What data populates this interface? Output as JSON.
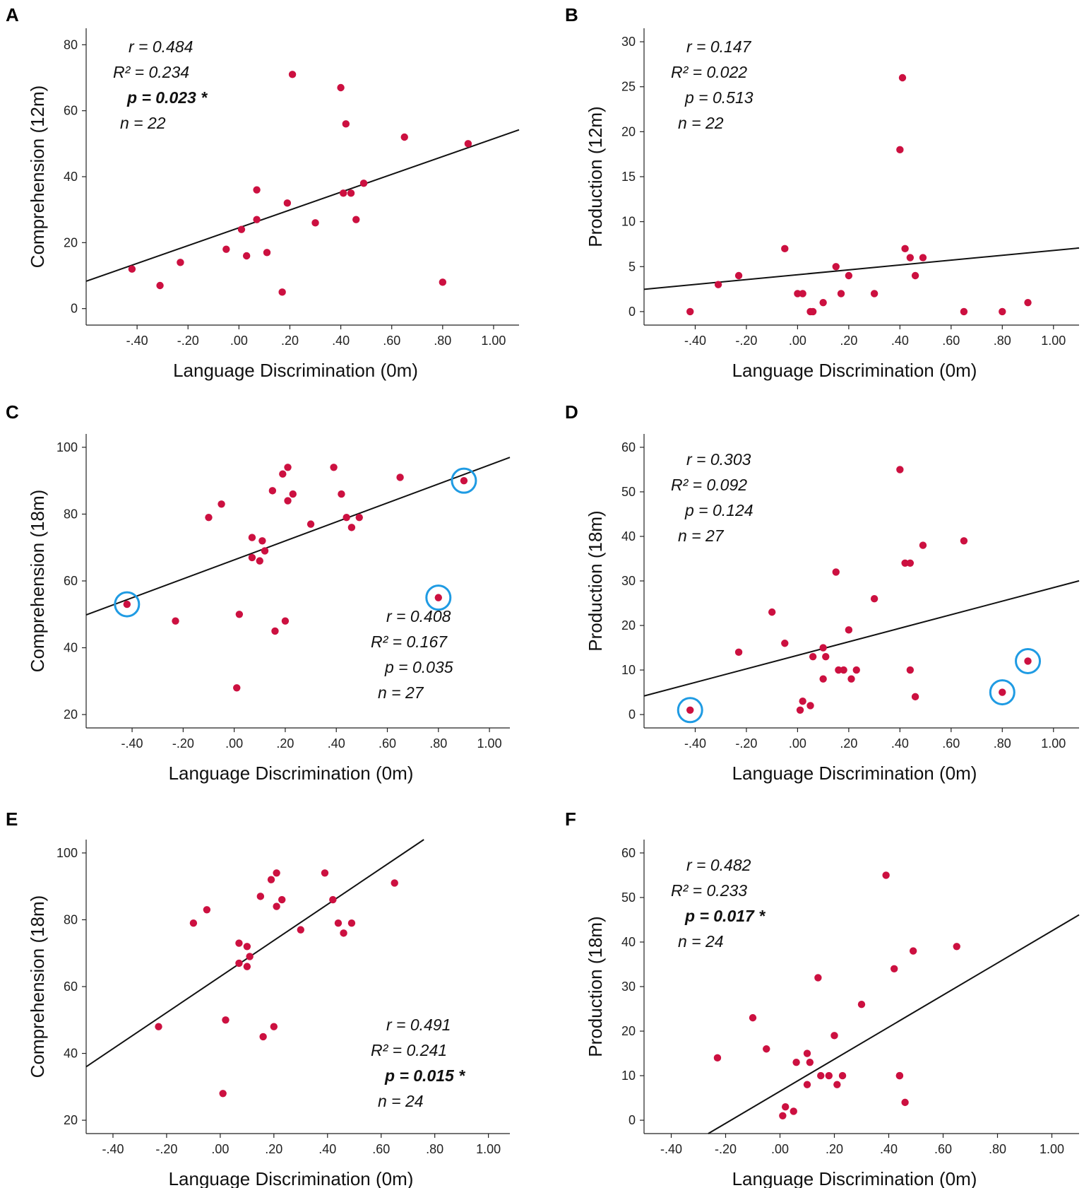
{
  "figure": {
    "colors": {
      "point": "#cc1040",
      "highlight": "#1f9be3",
      "line": "#111111"
    },
    "panels": [
      {
        "letter": "A",
        "xlabel": "Language Discrimination (0m)",
        "ylabel": "Comprehension (12m)",
        "xticks": [
          "-.40",
          "-.20",
          ".00",
          ".20",
          ".40",
          ".60",
          ".80",
          "1.00"
        ],
        "yticks": [
          "0",
          "20",
          "40",
          "60",
          "80"
        ],
        "stats": [
          {
            "text": "r = 0.484",
            "bold": false
          },
          {
            "text": "R² = 0.234",
            "bold": false
          },
          {
            "text": "p = 0.023 *",
            "bold": true
          },
          {
            "text": "n =  22",
            "bold": false
          }
        ]
      },
      {
        "letter": "B",
        "xlabel": "Language Discrimination (0m)",
        "ylabel": "Production (12m)",
        "xticks": [
          "-.40",
          "-.20",
          ".00",
          ".20",
          ".40",
          ".60",
          ".80",
          "1.00"
        ],
        "yticks": [
          "0",
          "5",
          "10",
          "15",
          "20",
          "25",
          "30"
        ],
        "stats": [
          {
            "text": "r = 0.147",
            "bold": false
          },
          {
            "text": "R² = 0.022",
            "bold": false
          },
          {
            "text": "p = 0.513",
            "bold": false
          },
          {
            "text": "n = 22",
            "bold": false
          }
        ]
      },
      {
        "letter": "C",
        "xlabel": "Language Discrimination (0m)",
        "ylabel": "Comprehension (18m)",
        "xticks": [
          "-.40",
          "-.20",
          ".00",
          ".20",
          ".40",
          ".60",
          ".80",
          "1.00"
        ],
        "yticks": [
          "20",
          "40",
          "60",
          "80",
          "100"
        ],
        "stats": [
          {
            "text": "r = 0.408",
            "bold": false
          },
          {
            "text": "R² = 0.167",
            "bold": false
          },
          {
            "text": "p = 0.035",
            "bold": false
          },
          {
            "text": "n = 27",
            "bold": false
          }
        ]
      },
      {
        "letter": "D",
        "xlabel": "Language Discrimination (0m)",
        "ylabel": "Production (18m)",
        "xticks": [
          "-.40",
          "-.20",
          ".00",
          ".20",
          ".40",
          ".60",
          ".80",
          "1.00"
        ],
        "yticks": [
          "0",
          "10",
          "20",
          "30",
          "40",
          "50",
          "60"
        ],
        "stats": [
          {
            "text": "r = 0.303",
            "bold": false
          },
          {
            "text": "R² = 0.092",
            "bold": false
          },
          {
            "text": "p = 0.124",
            "bold": false
          },
          {
            "text": "n = 27",
            "bold": false
          }
        ]
      },
      {
        "letter": "E",
        "xlabel": "Language Discrimination (0m)",
        "ylabel": "Comprehension (18m)",
        "xticks": [
          "-.40",
          "-.20",
          ".00",
          ".20",
          ".40",
          ".60",
          ".80",
          "1.00"
        ],
        "yticks": [
          "20",
          "40",
          "60",
          "80",
          "100"
        ],
        "stats": [
          {
            "text": "r = 0.491",
            "bold": false
          },
          {
            "text": "R² = 0.241",
            "bold": false
          },
          {
            "text": "p = 0.015 *",
            "bold": true
          },
          {
            "text": "n = 24",
            "bold": false
          }
        ]
      },
      {
        "letter": "F",
        "xlabel": "Language Discrimination (0m)",
        "ylabel": "Production (18m)",
        "xticks": [
          "-.40",
          "-.20",
          ".00",
          ".20",
          ".40",
          ".60",
          ".80",
          "1.00"
        ],
        "yticks": [
          "0",
          "10",
          "20",
          "30",
          "40",
          "50",
          "60"
        ],
        "stats": [
          {
            "text": "r = 0.482",
            "bold": false
          },
          {
            "text": "R² = 0.233",
            "bold": false
          },
          {
            "text": "p = 0.017 *",
            "bold": true
          },
          {
            "text": "n = 24",
            "bold": false
          }
        ]
      }
    ]
  },
  "chart_data": [
    {
      "type": "scatter",
      "panel": "A",
      "xlabel": "Language Discrimination (0m)",
      "ylabel": "Comprehension (12m)",
      "xlim": [
        -0.6,
        1.1
      ],
      "ylim": [
        -5,
        85
      ],
      "x": [
        -0.42,
        -0.31,
        -0.23,
        -0.05,
        0.01,
        0.03,
        0.07,
        0.07,
        0.11,
        0.17,
        0.19,
        0.21,
        0.3,
        0.4,
        0.41,
        0.42,
        0.44,
        0.46,
        0.49,
        0.65,
        0.8,
        0.9
      ],
      "y": [
        12,
        7,
        14,
        18,
        24,
        16,
        27,
        36,
        17,
        5,
        32,
        71,
        26,
        67,
        35,
        56,
        35,
        27,
        38,
        52,
        8,
        50
      ],
      "fit": {
        "slope": 27.0,
        "intercept": 24.5
      },
      "highlighted": []
    },
    {
      "type": "scatter",
      "panel": "B",
      "xlabel": "Language Discrimination (0m)",
      "ylabel": "Production (12m)",
      "xlim": [
        -0.6,
        1.1
      ],
      "ylim": [
        -1.5,
        31.5
      ],
      "x": [
        -0.42,
        -0.31,
        -0.23,
        -0.05,
        0.0,
        0.02,
        0.05,
        0.06,
        0.1,
        0.15,
        0.17,
        0.2,
        0.3,
        0.4,
        0.41,
        0.42,
        0.44,
        0.46,
        0.49,
        0.65,
        0.8,
        0.9
      ],
      "y": [
        0,
        3,
        4,
        7,
        2,
        2,
        0,
        0,
        1,
        5,
        2,
        4,
        2,
        18,
        26,
        7,
        6,
        4,
        6,
        0,
        0,
        1
      ],
      "fit": {
        "slope": 2.7,
        "intercept": 4.1
      },
      "highlighted": []
    },
    {
      "type": "scatter",
      "panel": "C",
      "xlabel": "Language Discrimination (0m)",
      "ylabel": "Comprehension (18m)",
      "xlim": [
        -0.58,
        1.08
      ],
      "ylim": [
        16,
        104
      ],
      "x": [
        -0.42,
        -0.23,
        -0.1,
        -0.05,
        0.01,
        0.02,
        0.07,
        0.07,
        0.1,
        0.11,
        0.12,
        0.15,
        0.16,
        0.19,
        0.2,
        0.21,
        0.21,
        0.23,
        0.3,
        0.39,
        0.42,
        0.44,
        0.46,
        0.49,
        0.65,
        0.8,
        0.9
      ],
      "y": [
        53,
        48,
        79,
        83,
        28,
        50,
        67,
        73,
        66,
        72,
        69,
        87,
        45,
        92,
        48,
        84,
        94,
        86,
        77,
        94,
        86,
        79,
        76,
        79,
        91,
        55,
        90
      ],
      "fit": {
        "slope": 28.4,
        "intercept": 66.3
      },
      "highlighted": [
        0,
        25,
        26
      ]
    },
    {
      "type": "scatter",
      "panel": "D",
      "xlabel": "Language Discrimination (0m)",
      "ylabel": "Production (18m)",
      "xlim": [
        -0.6,
        1.1
      ],
      "ylim": [
        -3,
        63
      ],
      "x": [
        -0.42,
        -0.23,
        -0.1,
        -0.05,
        0.01,
        0.02,
        0.05,
        0.06,
        0.1,
        0.1,
        0.11,
        0.15,
        0.16,
        0.18,
        0.2,
        0.21,
        0.23,
        0.3,
        0.4,
        0.42,
        0.44,
        0.46,
        0.49,
        0.65,
        0.8,
        0.9,
        0.44
      ],
      "y": [
        1,
        14,
        23,
        16,
        1,
        3,
        2,
        13,
        15,
        8,
        13,
        32,
        10,
        10,
        19,
        8,
        10,
        26,
        55,
        34,
        10,
        4,
        38,
        39,
        5,
        12,
        34
      ],
      "fit": {
        "slope": 15.2,
        "intercept": 13.3
      },
      "highlighted": [
        0,
        24,
        25
      ]
    },
    {
      "type": "scatter",
      "panel": "E",
      "xlabel": "Language Discrimination (0m)",
      "ylabel": "Comprehension (18m)",
      "xlim": [
        -0.5,
        1.08
      ],
      "ylim": [
        16,
        104
      ],
      "x": [
        -0.23,
        -0.1,
        -0.05,
        0.01,
        0.02,
        0.07,
        0.07,
        0.1,
        0.1,
        0.11,
        0.15,
        0.16,
        0.19,
        0.2,
        0.21,
        0.21,
        0.23,
        0.3,
        0.39,
        0.42,
        0.44,
        0.46,
        0.49,
        0.65
      ],
      "y": [
        48,
        79,
        83,
        28,
        50,
        67,
        73,
        72,
        66,
        69,
        87,
        45,
        92,
        48,
        84,
        94,
        86,
        77,
        94,
        86,
        79,
        76,
        79,
        91
      ],
      "fit": {
        "slope": 54.0,
        "intercept": 63.0
      },
      "highlighted": []
    },
    {
      "type": "scatter",
      "panel": "F",
      "xlabel": "Language Discrimination (0m)",
      "ylabel": "Production (18m)",
      "xlim": [
        -0.5,
        1.1
      ],
      "ylim": [
        -3,
        63
      ],
      "x": [
        -0.23,
        -0.1,
        -0.05,
        0.01,
        0.02,
        0.05,
        0.06,
        0.1,
        0.1,
        0.11,
        0.14,
        0.15,
        0.18,
        0.2,
        0.21,
        0.23,
        0.3,
        0.39,
        0.42,
        0.44,
        0.46,
        0.49,
        0.65,
        0.44
      ],
      "y": [
        14,
        23,
        16,
        1,
        3,
        2,
        13,
        15,
        8,
        13,
        32,
        10,
        10,
        19,
        8,
        10,
        26,
        55,
        34,
        10,
        4,
        38,
        39,
        10
      ],
      "fit": {
        "slope": 36.0,
        "intercept": 6.5
      },
      "highlighted": []
    }
  ]
}
